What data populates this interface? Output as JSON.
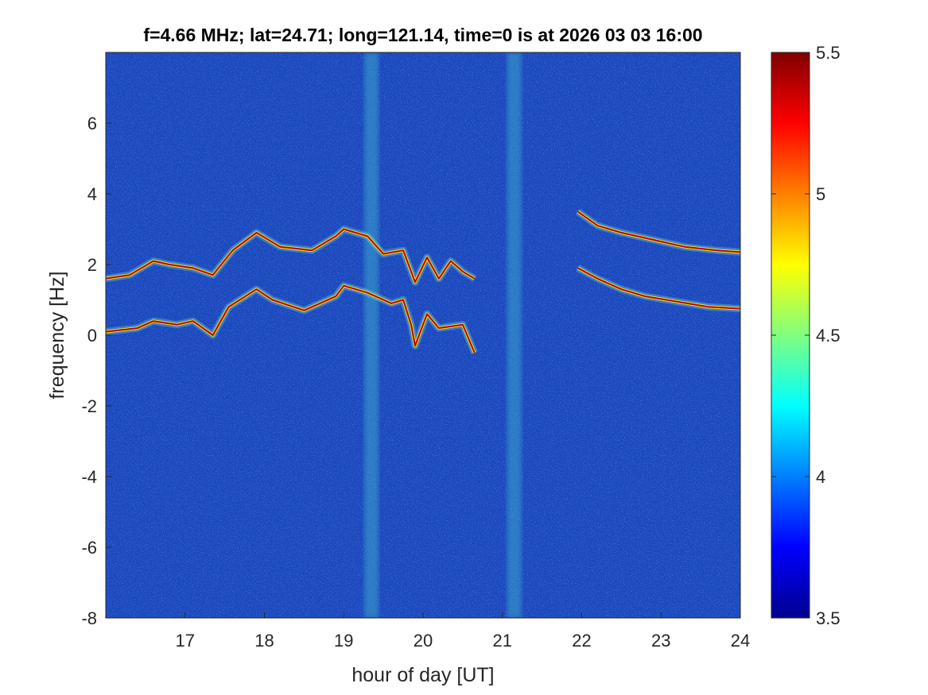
{
  "chart_data": {
    "type": "heatmap",
    "title": "f=4.66 MHz;  lat=24.71; long=121.14, time=0 is at 2026 03 03 16:00",
    "xlabel": "hour of day [UT]",
    "ylabel": "frequency [Hz]",
    "xlim": [
      16,
      24
    ],
    "ylim": [
      -8,
      8
    ],
    "x_ticks": [
      17,
      18,
      19,
      20,
      21,
      22,
      23,
      24
    ],
    "y_ticks": [
      -8,
      -6,
      -4,
      -2,
      0,
      2,
      4,
      6
    ],
    "colorbar": {
      "range": [
        3.5,
        5.5
      ],
      "ticks": [
        3.5,
        4,
        4.5,
        5,
        5.5
      ],
      "colormap": "jet"
    },
    "traces": [
      {
        "points": [
          [
            16.0,
            0.1
          ],
          [
            16.4,
            0.2
          ],
          [
            16.6,
            0.4
          ],
          [
            16.9,
            0.3
          ],
          [
            17.1,
            0.4
          ],
          [
            17.35,
            0.0
          ],
          [
            17.55,
            0.8
          ],
          [
            17.9,
            1.3
          ],
          [
            18.1,
            1.0
          ],
          [
            18.5,
            0.7
          ],
          [
            18.9,
            1.1
          ],
          [
            19.0,
            1.4
          ],
          [
            19.3,
            1.2
          ],
          [
            19.6,
            0.9
          ],
          [
            19.75,
            1.0
          ],
          [
            19.85,
            0.3
          ],
          [
            19.9,
            -0.3
          ],
          [
            20.05,
            0.6
          ],
          [
            20.2,
            0.2
          ],
          [
            20.5,
            0.3
          ],
          [
            20.65,
            -0.5
          ]
        ]
      },
      {
        "points": [
          [
            16.0,
            1.6
          ],
          [
            16.3,
            1.7
          ],
          [
            16.6,
            2.1
          ],
          [
            16.8,
            2.0
          ],
          [
            17.1,
            1.9
          ],
          [
            17.35,
            1.7
          ],
          [
            17.6,
            2.4
          ],
          [
            17.9,
            2.9
          ],
          [
            18.2,
            2.5
          ],
          [
            18.6,
            2.4
          ],
          [
            18.9,
            2.8
          ],
          [
            19.0,
            3.0
          ],
          [
            19.3,
            2.8
          ],
          [
            19.5,
            2.3
          ],
          [
            19.75,
            2.4
          ],
          [
            19.9,
            1.5
          ],
          [
            20.05,
            2.2
          ],
          [
            20.2,
            1.6
          ],
          [
            20.35,
            2.1
          ],
          [
            20.5,
            1.8
          ],
          [
            20.65,
            1.6
          ]
        ]
      },
      {
        "points": [
          [
            21.95,
            1.9
          ],
          [
            22.2,
            1.6
          ],
          [
            22.5,
            1.3
          ],
          [
            22.8,
            1.1
          ],
          [
            23.2,
            0.95
          ],
          [
            23.6,
            0.8
          ],
          [
            24.0,
            0.75
          ]
        ]
      },
      {
        "points": [
          [
            21.95,
            3.5
          ],
          [
            22.2,
            3.1
          ],
          [
            22.5,
            2.9
          ],
          [
            22.9,
            2.7
          ],
          [
            23.3,
            2.5
          ],
          [
            23.7,
            2.4
          ],
          [
            24.0,
            2.35
          ]
        ]
      }
    ],
    "vertical_bands": [
      19.35,
      21.15
    ]
  }
}
